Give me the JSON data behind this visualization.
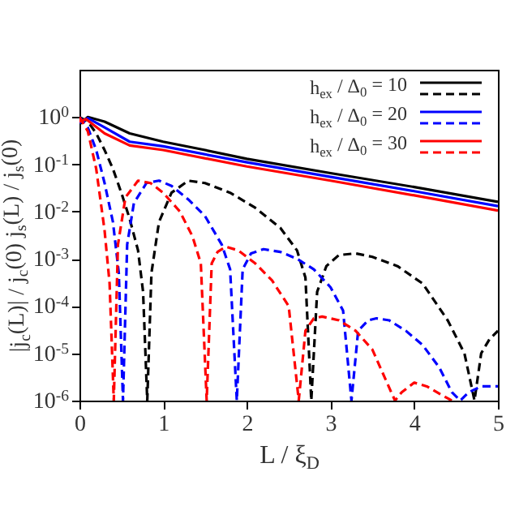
{
  "chart_data": {
    "type": "line",
    "xlabel": "L / ξ$_{D}$",
    "ylabel": "|j$_{c}$(L)| / j$_{c}$(0)     j$_{s}$(L) / j$_{s}$(0)",
    "xlim": [
      0,
      5
    ],
    "xticks": [
      0,
      1,
      2,
      3,
      4,
      5
    ],
    "ylim": [
      1e-06,
      10
    ],
    "yticks": [
      {
        "value": 1e-06,
        "label": "10$^{-6}$"
      },
      {
        "value": 1e-05,
        "label": "10$^{-5}$"
      },
      {
        "value": 0.0001,
        "label": "10$^{-4}$"
      },
      {
        "value": 0.001,
        "label": "10$^{-3}$"
      },
      {
        "value": 0.01,
        "label": "10$^{-2}$"
      },
      {
        "value": 0.1,
        "label": "10$^{-1}$"
      },
      {
        "value": 1,
        "label": "10$^{0}$"
      }
    ],
    "log": "y",
    "grid": false,
    "legend": "top right",
    "series": [
      {
        "name": "h$_{ex}$ / Δ$_{0}$ = 10",
        "color": "#000000",
        "line_style": "solid",
        "x": [
          0,
          0.1,
          0.3,
          0.6,
          1,
          1.5,
          2,
          3,
          4,
          5
        ],
        "values": [
          0.7,
          1.0,
          0.8,
          0.45,
          0.3,
          0.2,
          0.13,
          0.065,
          0.033,
          0.016
        ]
      },
      {
        "color": "#000000",
        "line_style": "dashed",
        "x": [
          0,
          0.1,
          0.2,
          0.3,
          0.4,
          0.5,
          0.6,
          0.7,
          0.76,
          0.81,
          0.86,
          0.95,
          1.1,
          1.3,
          1.5,
          1.8,
          2.1,
          2.4,
          2.6,
          2.7,
          2.77,
          2.84,
          2.95,
          3.1,
          3.3,
          3.5,
          3.8,
          4.1,
          4.4,
          4.6,
          4.72,
          4.8,
          4.9,
          5
        ],
        "values": [
          1,
          0.8,
          0.45,
          0.2,
          0.08,
          0.025,
          0.007,
          0.0015,
          0.0002,
          1e-06,
          0.0005,
          0.006,
          0.025,
          0.045,
          0.04,
          0.025,
          0.012,
          0.0045,
          0.0015,
          0.0004,
          1e-06,
          0.0002,
          0.0007,
          0.0012,
          0.0013,
          0.0011,
          0.0007,
          0.0003,
          5e-05,
          1e-05,
          1e-06,
          1e-05,
          2e-05,
          3e-05
        ]
      },
      {
        "name": "h$_{ex}$ / Δ$_{0}$ = 20",
        "color": "#0000ff",
        "line_style": "solid",
        "x": [
          0,
          0.1,
          0.3,
          0.6,
          1,
          2,
          3,
          4,
          5
        ],
        "values": [
          0.75,
          0.95,
          0.6,
          0.3,
          0.24,
          0.11,
          0.054,
          0.027,
          0.013
        ]
      },
      {
        "color": "#0000ff",
        "line_style": "dashed",
        "x": [
          0,
          0.1,
          0.2,
          0.3,
          0.4,
          0.47,
          0.52,
          0.57,
          0.65,
          0.8,
          0.95,
          1.1,
          1.3,
          1.5,
          1.7,
          1.8,
          1.88,
          1.95,
          2.05,
          2.2,
          2.4,
          2.6,
          2.8,
          3.0,
          3.15,
          3.25,
          3.33,
          3.45,
          3.55,
          3.7,
          3.9,
          4.1,
          4.3,
          4.45,
          4.55,
          4.65,
          4.8,
          5
        ],
        "values": [
          1,
          0.6,
          0.2,
          0.04,
          0.006,
          0.0005,
          1e-06,
          0.002,
          0.015,
          0.04,
          0.045,
          0.035,
          0.018,
          0.008,
          0.002,
          0.0006,
          1e-06,
          0.0006,
          0.0013,
          0.0016,
          0.0014,
          0.001,
          0.0006,
          0.00025,
          8e-05,
          1e-06,
          3e-05,
          5e-05,
          5.5e-05,
          5e-05,
          3e-05,
          1.5e-05,
          5e-06,
          1.5e-06,
          1e-06,
          1.5e-06,
          2e-06,
          2e-06
        ]
      },
      {
        "name": "h$_{ex}$ / Δ$_{0}$ = 30",
        "color": "#ff0000",
        "line_style": "solid",
        "x": [
          0,
          0.08,
          0.3,
          0.6,
          1,
          2,
          3,
          4,
          5
        ],
        "values": [
          0.8,
          0.9,
          0.45,
          0.25,
          0.2,
          0.09,
          0.045,
          0.022,
          0.0105
        ]
      },
      {
        "color": "#ff0000",
        "line_style": "dashed",
        "x": [
          0,
          0.1,
          0.2,
          0.3,
          0.36,
          0.41,
          0.46,
          0.55,
          0.7,
          0.85,
          1.0,
          1.2,
          1.35,
          1.45,
          1.52,
          1.58,
          1.65,
          1.75,
          1.9,
          2.1,
          2.3,
          2.5,
          2.62,
          2.7,
          2.8,
          2.9,
          3.1,
          3.3,
          3.5,
          3.65,
          3.77,
          3.85,
          4.0,
          4.15,
          4.3,
          4.45
        ],
        "values": [
          1,
          0.5,
          0.08,
          0.004,
          0.0003,
          1e-06,
          0.002,
          0.02,
          0.045,
          0.04,
          0.025,
          0.01,
          0.003,
          0.0008,
          1e-06,
          0.0008,
          0.0014,
          0.0018,
          0.0015,
          0.0008,
          0.00035,
          0.0001,
          1e-06,
          3e-05,
          5.5e-05,
          6e-05,
          5e-05,
          3e-05,
          1.2e-05,
          3e-06,
          1e-06,
          1.5e-06,
          2.4e-06,
          2e-06,
          1.4e-06,
          1e-06
        ]
      }
    ]
  }
}
